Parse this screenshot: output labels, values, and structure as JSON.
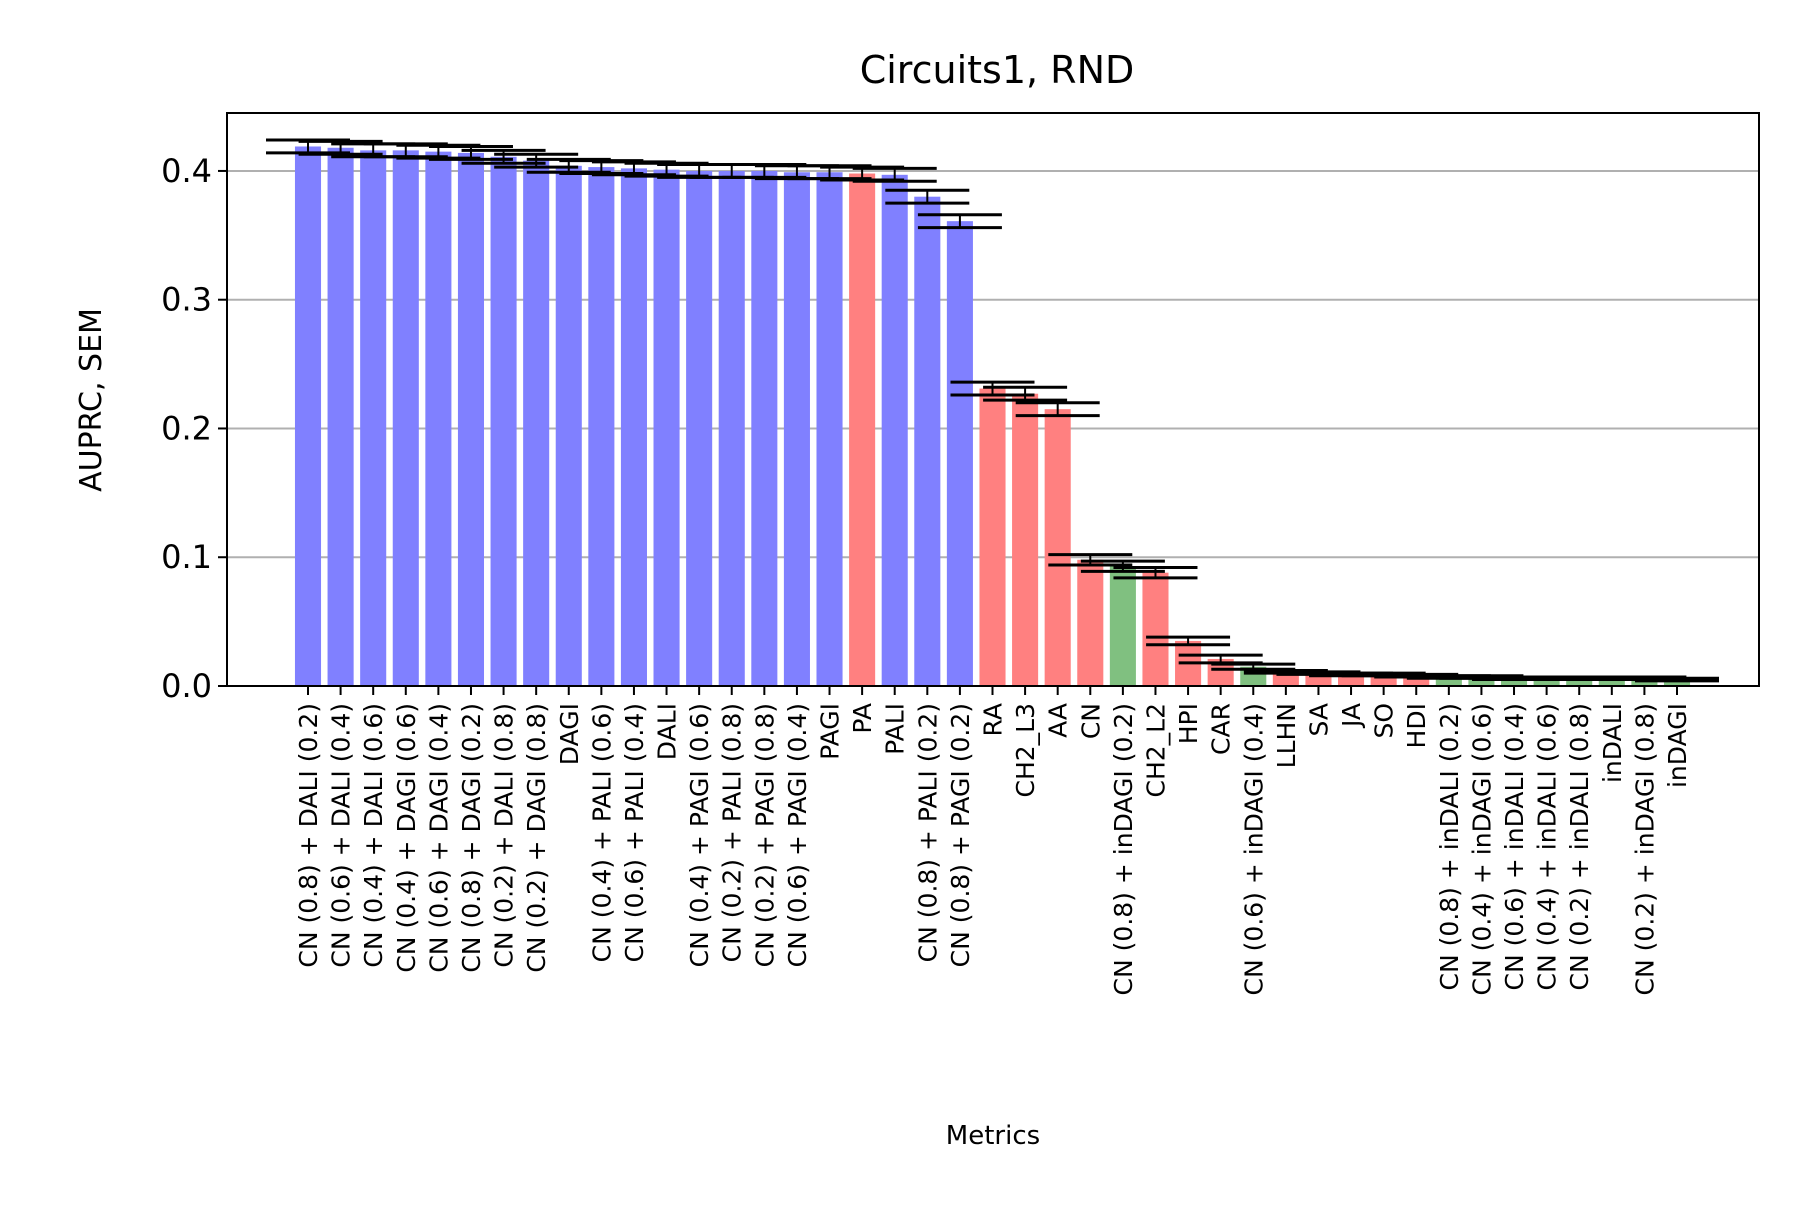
{
  "chart_data": {
    "type": "bar",
    "title": "Circuits1, RND",
    "xlabel": "Metrics",
    "ylabel": "AUPRC, SEM",
    "ylim": [
      0,
      0.445
    ],
    "yticks": [
      0.0,
      0.1,
      0.2,
      0.3,
      0.4
    ],
    "ytick_labels": [
      "0.0",
      "0.1",
      "0.2",
      "0.3",
      "0.4"
    ],
    "grid": "horizontal",
    "colors": {
      "blue": "#8080ff",
      "red": "#ff8080",
      "green": "#80c080",
      "grid": "#b0b0b0",
      "error": "#000000"
    },
    "categories": [
      "CN (0.8) + DALI (0.2)",
      "CN (0.6) + DALI (0.4)",
      "CN (0.4) + DALI (0.6)",
      "CN (0.4) + DAGI (0.6)",
      "CN (0.6) + DAGI (0.4)",
      "CN (0.8) + DAGI (0.2)",
      "CN (0.2) + DALI (0.8)",
      "CN (0.2) + DAGI (0.8)",
      "DAGI",
      "CN (0.4) + PALI (0.6)",
      "CN (0.6) + PALI (0.4)",
      "DALI",
      "CN (0.4) + PAGI (0.6)",
      "CN (0.2) + PALI (0.8)",
      "CN (0.2) + PAGI (0.8)",
      "CN (0.6) + PAGI (0.4)",
      "PAGI",
      "PA",
      "PALI",
      "CN (0.8) + PALI (0.2)",
      "CN (0.8) + PAGI (0.2)",
      "RA",
      "CH2_L3",
      "AA",
      "CN",
      "CN (0.8) + inDAGI (0.2)",
      "CH2_L2",
      "HPI",
      "CAR",
      "CN (0.6) + inDAGI (0.4)",
      "LLHN",
      "SA",
      "JA",
      "SO",
      "HDI",
      "CN (0.8) + inDALI (0.2)",
      "CN (0.4) + inDAGI (0.6)",
      "CN (0.6) + inDALI (0.4)",
      "CN (0.4) + inDALI (0.6)",
      "CN (0.2) + inDALI (0.8)",
      "inDALI",
      "CN (0.2) + inDAGI (0.8)",
      "inDAGI"
    ],
    "values": [
      0.419,
      0.418,
      0.416,
      0.416,
      0.415,
      0.414,
      0.411,
      0.408,
      0.404,
      0.403,
      0.402,
      0.401,
      0.4,
      0.4,
      0.4,
      0.399,
      0.399,
      0.398,
      0.397,
      0.38,
      0.361,
      0.231,
      0.227,
      0.215,
      0.098,
      0.093,
      0.088,
      0.035,
      0.021,
      0.015,
      0.011,
      0.01,
      0.009,
      0.009,
      0.008,
      0.007,
      0.007,
      0.006,
      0.006,
      0.006,
      0.006,
      0.006,
      0.005
    ],
    "errors": [
      0.005,
      0.005,
      0.005,
      0.005,
      0.005,
      0.005,
      0.005,
      0.005,
      0.005,
      0.005,
      0.005,
      0.005,
      0.005,
      0.005,
      0.005,
      0.005,
      0.005,
      0.005,
      0.005,
      0.005,
      0.005,
      0.005,
      0.005,
      0.005,
      0.004,
      0.004,
      0.004,
      0.003,
      0.003,
      0.002,
      0.001,
      0.001,
      0.001,
      0.001,
      0.001,
      0.001,
      0.001,
      0.001,
      0.001,
      0.001,
      0.001,
      0.001,
      0.001
    ],
    "bar_colors": [
      "blue",
      "blue",
      "blue",
      "blue",
      "blue",
      "blue",
      "blue",
      "blue",
      "blue",
      "blue",
      "blue",
      "blue",
      "blue",
      "blue",
      "blue",
      "blue",
      "blue",
      "red",
      "blue",
      "blue",
      "blue",
      "red",
      "red",
      "red",
      "red",
      "green",
      "red",
      "red",
      "red",
      "green",
      "red",
      "red",
      "red",
      "red",
      "red",
      "green",
      "green",
      "green",
      "green",
      "green",
      "green",
      "green",
      "green"
    ]
  }
}
